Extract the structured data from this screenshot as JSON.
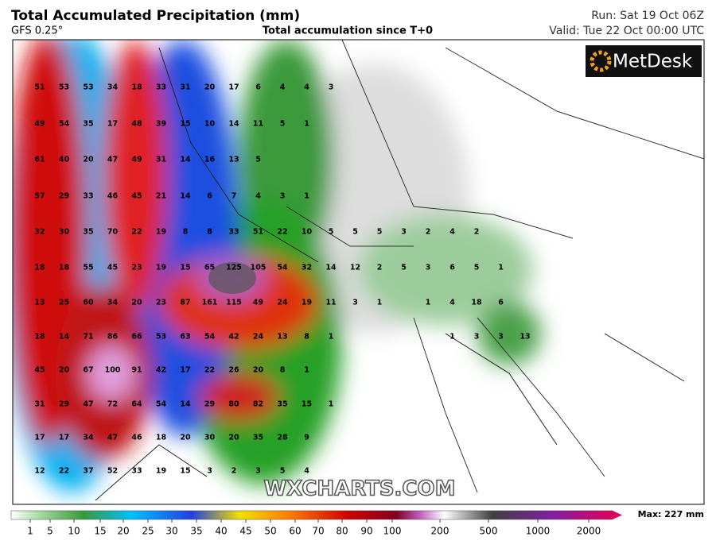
{
  "header": {
    "title": "Total Accumulated Precipitation (mm)",
    "model": "GFS 0.25°",
    "subtitle": "Total accumulation since T+0",
    "run": "Run: Sat 19 Oct 06Z",
    "valid": "Valid: Tue 22 Oct 00:00 UTC"
  },
  "logo": "MetDesk",
  "watermark": "WXCHARTS.COM",
  "map_values": [
    [
      51,
      53,
      53,
      34,
      18,
      33,
      31,
      20,
      17,
      6,
      4,
      4,
      3
    ],
    [
      49,
      54,
      35,
      17,
      48,
      39,
      15,
      10,
      14,
      11,
      5,
      1
    ],
    [
      61,
      40,
      20,
      47,
      49,
      31,
      14,
      16,
      13,
      5
    ],
    [
      57,
      29,
      33,
      46,
      45,
      21,
      14,
      6,
      7,
      4,
      3,
      1
    ],
    [
      32,
      30,
      35,
      70,
      22,
      19,
      8,
      8,
      33,
      51,
      22,
      10,
      5,
      5,
      5,
      3,
      2,
      4,
      2
    ],
    [
      18,
      18,
      55,
      45,
      23,
      19,
      15,
      65,
      125,
      105,
      54,
      32,
      14,
      12,
      2,
      5,
      3,
      6,
      5,
      1
    ],
    [
      13,
      25,
      60,
      34,
      20,
      23,
      87,
      161,
      115,
      49,
      24,
      19,
      11,
      3,
      1,
      null,
      1,
      4,
      18,
      6
    ],
    [
      18,
      14,
      71,
      86,
      66,
      53,
      63,
      54,
      42,
      24,
      13,
      8,
      1,
      null,
      null,
      null,
      null,
      1,
      3,
      3,
      13
    ],
    [
      45,
      20,
      67,
      100,
      91,
      42,
      17,
      22,
      26,
      20,
      8,
      1
    ],
    [
      31,
      29,
      47,
      72,
      64,
      54,
      14,
      29,
      80,
      82,
      35,
      15,
      1
    ],
    [
      17,
      17,
      34,
      47,
      46,
      18,
      20,
      30,
      20,
      35,
      28,
      9
    ],
    [
      12,
      22,
      37,
      52,
      33,
      19,
      15,
      3,
      2,
      3,
      5,
      4
    ]
  ],
  "legend": {
    "labels": [
      1,
      5,
      10,
      15,
      20,
      25,
      30,
      35,
      40,
      45,
      50,
      60,
      70,
      80,
      90,
      100,
      200,
      500,
      1000,
      2000
    ],
    "max": "Max: 227 mm"
  }
}
